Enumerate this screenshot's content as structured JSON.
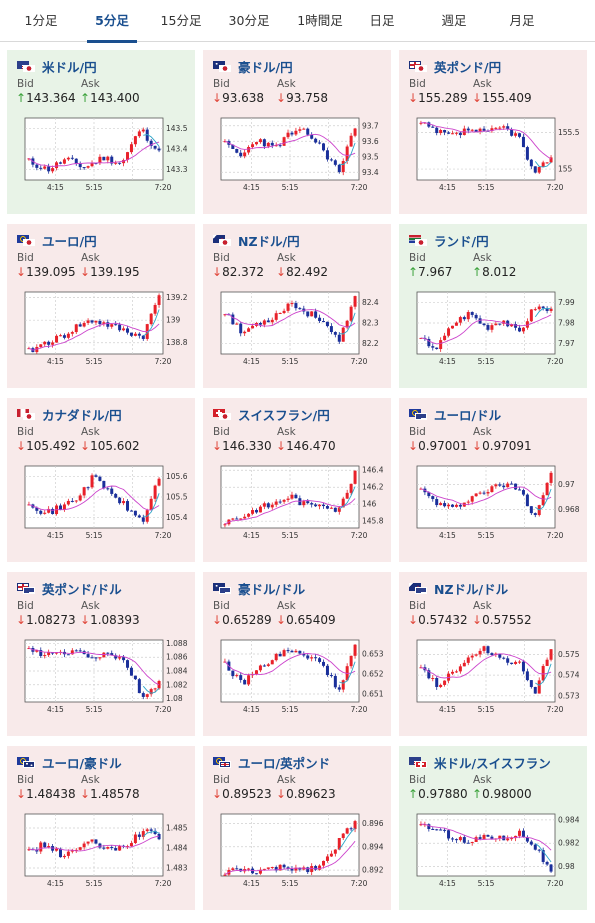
{
  "colors": {
    "up_arrow": "#3aa13a",
    "down_arrow": "#e0463a",
    "card_up": "#e8f3e7",
    "card_down": "#f8eaea",
    "tab_active": "#1a4f8f",
    "candle_up": "#e8212a",
    "candle_down": "#1a2f9a",
    "ma_line": "#cc44cc",
    "ma_line2": "#2ea6c8"
  },
  "tabs": [
    {
      "label": "1分足",
      "active": false
    },
    {
      "label": "5分足",
      "active": true
    },
    {
      "label": "15分足",
      "active": false
    },
    {
      "label": "30分足",
      "active": false
    },
    {
      "label": "1時間足",
      "active": false
    },
    {
      "label": "日足",
      "active": false
    },
    {
      "label": "週足",
      "active": false
    },
    {
      "label": "月足",
      "active": false
    }
  ],
  "bid_label": "Bid",
  "ask_label": "Ask",
  "cards": [
    {
      "name": "米ドル/円",
      "flag1": "us-flag-icon",
      "flag2": "jp-flag-icon",
      "direction": "up",
      "bid": "143.364",
      "ask": "143.400",
      "seed": 11,
      "chart_data": {
        "type": "candlestick",
        "x_ticks": [
          "4:15",
          "5:15",
          "7:20"
        ],
        "y_ticks": [
          "143.5",
          "143.4",
          "143.3"
        ],
        "y_range": [
          143.25,
          143.55
        ],
        "trend": [
          143.34,
          143.3,
          143.35,
          143.31,
          143.36,
          143.33,
          143.5,
          143.38
        ]
      }
    },
    {
      "name": "豪ドル/円",
      "flag1": "au-flag-icon",
      "flag2": "jp-flag-icon",
      "direction": "down",
      "bid": "93.638",
      "ask": "93.758",
      "seed": 23,
      "chart_data": {
        "type": "candlestick",
        "x_ticks": [
          "4:15",
          "5:15",
          "7:20"
        ],
        "y_ticks": [
          "93.7",
          "93.6",
          "93.5",
          "93.4"
        ],
        "y_range": [
          93.35,
          93.75
        ],
        "trend": [
          93.58,
          93.5,
          93.62,
          93.55,
          93.65,
          93.66,
          93.55,
          93.4,
          93.7
        ]
      }
    },
    {
      "name": "英ポンド/円",
      "flag1": "uk-flag-icon",
      "flag2": "jp-flag-icon",
      "direction": "down",
      "bid": "155.289",
      "ask": "155.409",
      "seed": 37,
      "chart_data": {
        "type": "candlestick",
        "x_ticks": [
          "4:15",
          "5:15",
          "7:20"
        ],
        "y_ticks": [
          "155.5",
          "155"
        ],
        "y_range": [
          154.85,
          155.7
        ],
        "trend": [
          155.62,
          155.5,
          155.45,
          155.55,
          155.48,
          155.58,
          155.45,
          154.9,
          155.2
        ]
      }
    },
    {
      "name": "ユーロ/円",
      "flag1": "eu-flag-icon",
      "flag2": "jp-flag-icon",
      "direction": "down",
      "bid": "139.095",
      "ask": "139.195",
      "seed": 41,
      "chart_data": {
        "type": "candlestick",
        "x_ticks": [
          "4:15",
          "5:15",
          "7:20"
        ],
        "y_ticks": [
          "139.2",
          "139",
          "138.8"
        ],
        "y_range": [
          138.7,
          139.25
        ],
        "trend": [
          138.72,
          138.8,
          138.85,
          138.95,
          139.0,
          138.95,
          138.9,
          138.85,
          139.22
        ]
      }
    },
    {
      "name": "NZドル/円",
      "flag1": "nz-flag-icon",
      "flag2": "jp-flag-icon",
      "direction": "down",
      "bid": "82.372",
      "ask": "82.492",
      "seed": 53,
      "chart_data": {
        "type": "candlestick",
        "x_ticks": [
          "4:15",
          "5:15",
          "7:20"
        ],
        "y_ticks": [
          "82.4",
          "82.3",
          "82.2"
        ],
        "y_range": [
          82.15,
          82.45
        ],
        "trend": [
          82.36,
          82.25,
          82.3,
          82.33,
          82.4,
          82.35,
          82.32,
          82.2,
          82.42
        ]
      }
    },
    {
      "name": "ランド/円",
      "flag1": "za-flag-icon",
      "flag2": "jp-flag-icon",
      "direction": "up",
      "bid": "7.967",
      "ask": "8.012",
      "seed": 67,
      "chart_data": {
        "type": "candlestick",
        "x_ticks": [
          "4:15",
          "5:15",
          "7:20"
        ],
        "y_ticks": [
          "7.99",
          "7.98",
          "7.97"
        ],
        "y_range": [
          7.965,
          7.995
        ],
        "trend": [
          7.972,
          7.968,
          7.98,
          7.985,
          7.978,
          7.982,
          7.975,
          7.988,
          7.986
        ]
      }
    },
    {
      "name": "カナダドル/円",
      "flag1": "ca-flag-icon",
      "flag2": "jp-flag-icon",
      "direction": "down",
      "bid": "105.492",
      "ask": "105.602",
      "seed": 71,
      "chart_data": {
        "type": "candlestick",
        "x_ticks": [
          "4:15",
          "5:15",
          "7:20"
        ],
        "y_ticks": [
          "105.6",
          "105.5",
          "105.4"
        ],
        "y_range": [
          105.35,
          105.65
        ],
        "trend": [
          105.48,
          105.42,
          105.45,
          105.5,
          105.6,
          105.52,
          105.45,
          105.38,
          105.6
        ]
      }
    },
    {
      "name": "スイスフラン/円",
      "flag1": "ch-flag-icon",
      "flag2": "jp-flag-icon",
      "direction": "down",
      "bid": "146.330",
      "ask": "146.470",
      "seed": 83,
      "chart_data": {
        "type": "candlestick",
        "x_ticks": [
          "4:15",
          "5:15",
          "7:20"
        ],
        "y_ticks": [
          "146.4",
          "146.2",
          "146",
          "145.8"
        ],
        "y_range": [
          145.72,
          146.45
        ],
        "trend": [
          145.8,
          145.85,
          145.95,
          146.0,
          146.1,
          145.98,
          146.02,
          145.92,
          146.4
        ]
      }
    },
    {
      "name": "ユーロ/ドル",
      "flag1": "eu-flag-icon",
      "flag2": "us-flag-icon",
      "direction": "down",
      "bid": "0.97001",
      "ask": "0.97091",
      "seed": 97,
      "chart_data": {
        "type": "candlestick",
        "x_ticks": [
          "4:15",
          "5:15",
          "7:20"
        ],
        "y_ticks": [
          "0.97",
          "0.968"
        ],
        "y_range": [
          0.9665,
          0.9715
        ],
        "trend": [
          0.9695,
          0.9685,
          0.968,
          0.969,
          0.9695,
          0.97,
          0.9698,
          0.9675,
          0.971
        ]
      }
    },
    {
      "name": "英ポンド/ドル",
      "flag1": "uk-flag-icon",
      "flag2": "us-flag-icon",
      "direction": "down",
      "bid": "1.08273",
      "ask": "1.08393",
      "seed": 103,
      "chart_data": {
        "type": "candlestick",
        "x_ticks": [
          "4:15",
          "5:15",
          "7:20"
        ],
        "y_ticks": [
          "1.088",
          "1.086",
          "1.084",
          "1.082",
          "1.08"
        ],
        "y_range": [
          1.0795,
          1.0885
        ],
        "trend": [
          1.087,
          1.0862,
          1.0866,
          1.0868,
          1.086,
          1.0866,
          1.085,
          1.08,
          1.0825
        ]
      }
    },
    {
      "name": "豪ドル/ドル",
      "flag1": "au-flag-icon",
      "flag2": "us-flag-icon",
      "direction": "down",
      "bid": "0.65289",
      "ask": "0.65409",
      "seed": 109,
      "chart_data": {
        "type": "candlestick",
        "x_ticks": [
          "4:15",
          "5:15",
          "7:20"
        ],
        "y_ticks": [
          "0.653",
          "0.652",
          "0.651"
        ],
        "y_range": [
          0.6506,
          0.6537
        ],
        "trend": [
          0.6525,
          0.6515,
          0.6522,
          0.6528,
          0.6532,
          0.6528,
          0.6526,
          0.651,
          0.6534
        ]
      }
    },
    {
      "name": "NZドル/ドル",
      "flag1": "nz-flag-icon",
      "flag2": "us-flag-icon",
      "direction": "down",
      "bid": "0.57432",
      "ask": "0.57552",
      "seed": 113,
      "chart_data": {
        "type": "candlestick",
        "x_ticks": [
          "4:15",
          "5:15",
          "7:20"
        ],
        "y_ticks": [
          "0.575",
          "0.574",
          "0.573"
        ],
        "y_range": [
          0.5727,
          0.5757
        ],
        "trend": [
          0.5745,
          0.5735,
          0.5742,
          0.5748,
          0.5753,
          0.5748,
          0.5746,
          0.5732,
          0.5754
        ]
      }
    },
    {
      "name": "ユーロ/豪ドル",
      "flag1": "eu-flag-icon",
      "flag2": "au-flag-icon",
      "direction": "down",
      "bid": "1.48438",
      "ask": "1.48578",
      "seed": 127,
      "chart_data": {
        "type": "candlestick",
        "x_ticks": [
          "4:15",
          "5:15",
          "7:20"
        ],
        "y_ticks": [
          "1.485",
          "1.484",
          "1.483"
        ],
        "y_range": [
          1.4826,
          1.4857
        ],
        "trend": [
          1.4838,
          1.4842,
          1.4836,
          1.484,
          1.4843,
          1.4838,
          1.4842,
          1.4848,
          1.4846
        ]
      }
    },
    {
      "name": "ユーロ/英ポンド",
      "flag1": "eu-flag-icon",
      "flag2": "uk-flag-icon",
      "direction": "down",
      "bid": "0.89523",
      "ask": "0.89623",
      "seed": 131,
      "chart_data": {
        "type": "candlestick",
        "x_ticks": [
          "4:15",
          "5:15",
          "7:20"
        ],
        "y_ticks": [
          "0.896",
          "0.894",
          "0.892"
        ],
        "y_range": [
          0.8915,
          0.8968
        ],
        "trend": [
          0.8918,
          0.892,
          0.8919,
          0.8921,
          0.8922,
          0.8921,
          0.8925,
          0.8945,
          0.8962
        ]
      }
    },
    {
      "name": "米ドル/スイスフラン",
      "flag1": "us-flag-icon",
      "flag2": "ch-flag-icon",
      "direction": "up",
      "bid": "0.97880",
      "ask": "0.98000",
      "seed": 137,
      "chart_data": {
        "type": "candlestick",
        "x_ticks": [
          "4:15",
          "5:15",
          "7:20"
        ],
        "y_ticks": [
          "0.984",
          "0.982",
          "0.98"
        ],
        "y_range": [
          0.9792,
          0.9845
        ],
        "trend": [
          0.9838,
          0.983,
          0.9826,
          0.982,
          0.9828,
          0.9824,
          0.983,
          0.9818,
          0.9795
        ]
      }
    }
  ]
}
